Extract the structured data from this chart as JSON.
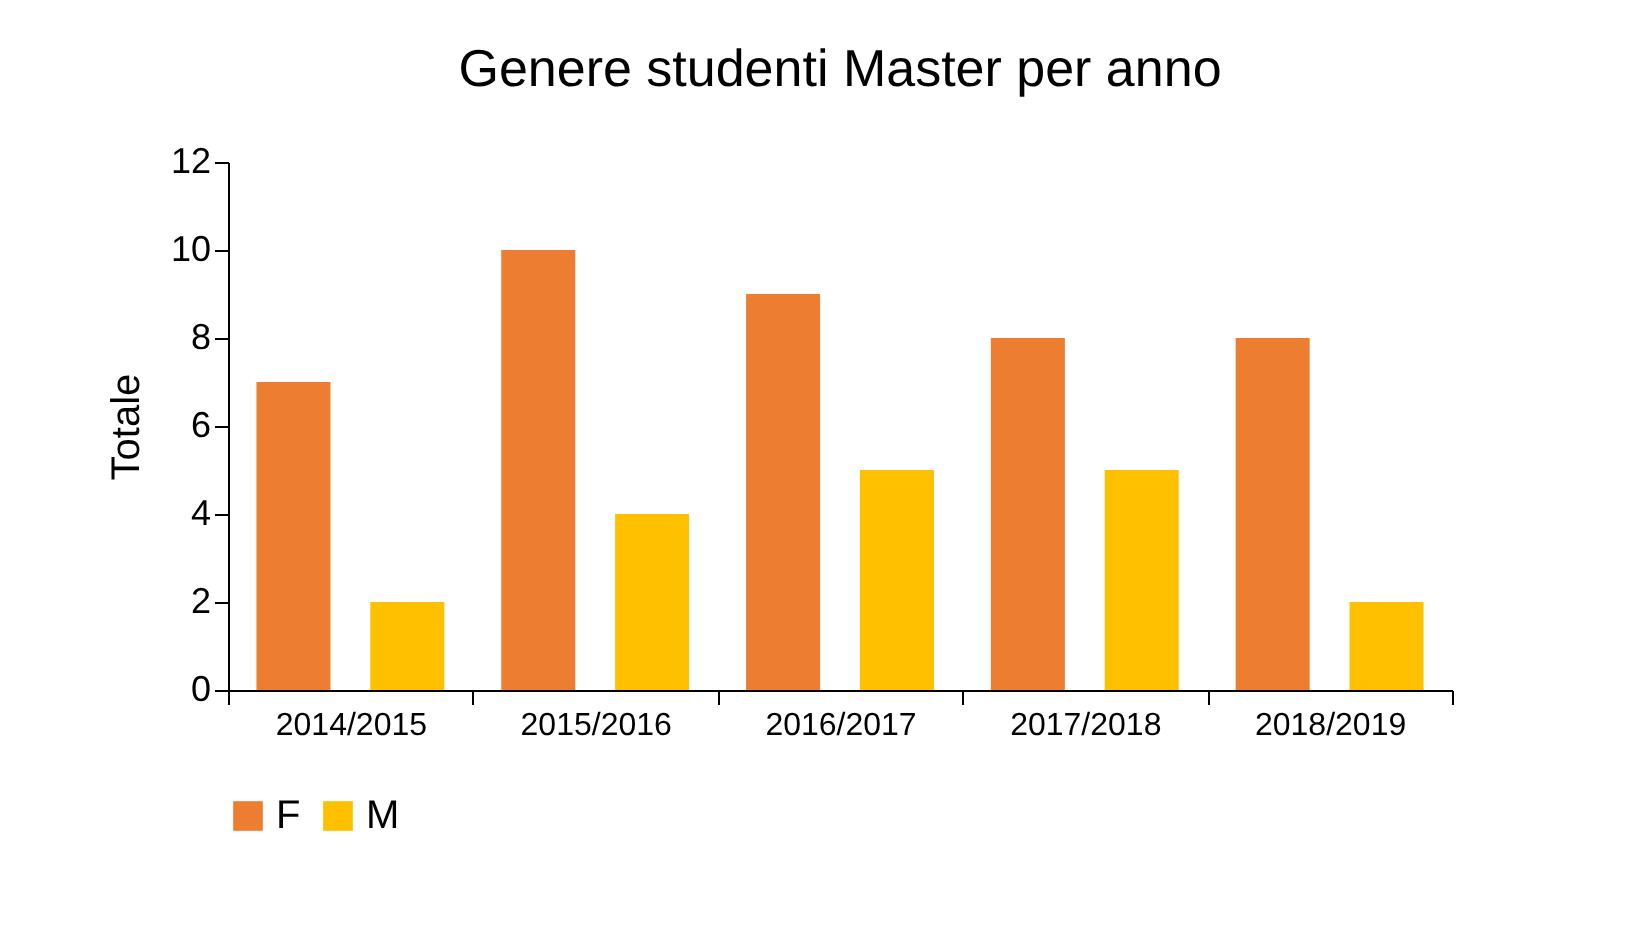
{
  "chart_data": {
    "type": "bar",
    "title": "Genere studenti Master per anno",
    "ylabel": "Totale",
    "categories": [
      "2014/2015",
      "2015/2016",
      "2016/2017",
      "2017/2018",
      "2018/2019"
    ],
    "series": [
      {
        "name": "F",
        "color": "#ed7d31",
        "values": [
          7,
          10,
          9,
          8,
          8
        ]
      },
      {
        "name": "M",
        "color": "#ffc000",
        "values": [
          2,
          4,
          5,
          5,
          2
        ]
      }
    ],
    "ylim": [
      0,
      12
    ],
    "yticks": [
      0,
      2,
      4,
      6,
      8,
      10,
      12
    ],
    "grid": false,
    "legend": "bottom"
  }
}
